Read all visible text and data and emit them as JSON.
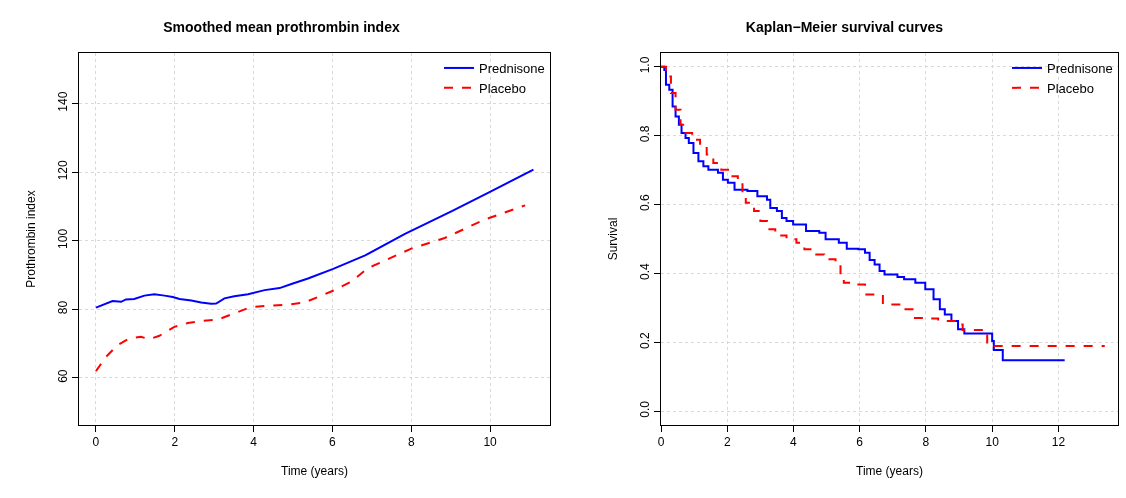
{
  "chart_data": [
    {
      "type": "line",
      "title": "Smoothed mean prothrombin index",
      "xlabel": "Time (years)",
      "ylabel": "Prothrombin index",
      "xlim": [
        -0.43,
        11.52
      ],
      "ylim": [
        46.3,
        154.7
      ],
      "xticks": [
        0,
        2,
        4,
        6,
        8,
        10
      ],
      "yticks": [
        60,
        80,
        100,
        120,
        140
      ],
      "grid": true,
      "legend": "top right",
      "series": [
        {
          "name": "Prednisone",
          "color": "#0000ff",
          "line_style": "solid",
          "x": [
            0,
            0.42,
            0.64,
            0.76,
            0.97,
            1.23,
            1.48,
            1.74,
            1.95,
            2.12,
            2.42,
            2.67,
            2.92,
            3.05,
            3.26,
            3.51,
            3.86,
            4.28,
            4.66,
            4.96,
            5.38,
            6.02,
            6.83,
            7.84,
            9.03,
            9.96,
            11.1
          ],
          "values": [
            80.5,
            82.4,
            82.2,
            82.9,
            83,
            84,
            84.4,
            84,
            83.6,
            83,
            82.6,
            82,
            81.6,
            81.7,
            83.2,
            83.8,
            84.4,
            85.6,
            86.2,
            87.4,
            89,
            91.8,
            95.7,
            102,
            108.6,
            114,
            120.7
          ]
        },
        {
          "name": "Placebo",
          "color": "#ff0000",
          "line_style": "dashed",
          "x": [
            0,
            0.25,
            0.55,
            0.85,
            1.14,
            1.36,
            1.61,
            1.99,
            2.33,
            2.67,
            3.09,
            3.43,
            3.94,
            4.44,
            4.86,
            5.29,
            5.97,
            6.48,
            6.9,
            8.0,
            8.85,
            9.87,
            10.89
          ],
          "values": [
            62,
            66.1,
            69.6,
            71.5,
            72,
            71.3,
            72.3,
            74.9,
            76,
            76.6,
            77,
            78.5,
            80.7,
            81.1,
            81.3,
            82,
            85.2,
            88.1,
            92,
            97.7,
            100.8,
            106.2,
            110.3
          ]
        }
      ]
    },
    {
      "type": "step",
      "title": "Kaplan−Meier survival curves",
      "xlabel": "Time (years)",
      "ylabel": "Survival",
      "xlim": [
        0,
        13.8
      ],
      "ylim": [
        -0.04,
        1.04
      ],
      "xticks": [
        0,
        2,
        4,
        6,
        8,
        10,
        12
      ],
      "yticks": [
        {
          "value": 0,
          "label": "0.0"
        },
        0.2,
        0.4,
        0.6,
        0.8,
        {
          "value": 1,
          "label": "1.0"
        }
      ],
      "grid": true,
      "legend": "top right",
      "series": [
        {
          "name": "Prednisone",
          "color": "#0000ff",
          "line_style": "solid",
          "x": [
            0,
            0.1,
            0.15,
            0.25,
            0.35,
            0.44,
            0.54,
            0.62,
            0.74,
            0.84,
            0.98,
            1.13,
            1.28,
            1.43,
            1.72,
            1.87,
            2.02,
            2.22,
            2.61,
            2.91,
            3.2,
            3.3,
            3.5,
            3.65,
            3.79,
            3.99,
            4.38,
            4.78,
            4.97,
            5.37,
            5.61,
            5.96,
            6.16,
            6.3,
            6.45,
            6.6,
            6.75,
            7.14,
            7.34,
            7.68,
            7.98,
            8.23,
            8.42,
            8.57,
            8.77,
            8.97,
            9.16,
            10.0,
            10.05,
            10.32,
            12.19
          ],
          "values": [
            1.0,
            0.991,
            0.948,
            0.933,
            0.885,
            0.856,
            0.832,
            0.808,
            0.793,
            0.779,
            0.75,
            0.726,
            0.711,
            0.701,
            0.692,
            0.672,
            0.663,
            0.643,
            0.639,
            0.624,
            0.614,
            0.59,
            0.581,
            0.561,
            0.552,
            0.542,
            0.523,
            0.518,
            0.499,
            0.489,
            0.472,
            0.47,
            0.46,
            0.439,
            0.426,
            0.407,
            0.397,
            0.39,
            0.383,
            0.373,
            0.354,
            0.325,
            0.296,
            0.281,
            0.262,
            0.238,
            0.226,
            0.204,
            0.178,
            0.148,
            0.148
          ]
        },
        {
          "name": "Placebo",
          "color": "#ff0000",
          "line_style": "dashed",
          "x": [
            0,
            0.15,
            0.3,
            0.44,
            0.59,
            0.74,
            0.94,
            1.18,
            1.38,
            1.58,
            1.82,
            2.07,
            2.32,
            2.46,
            2.56,
            2.81,
            3.0,
            3.2,
            3.45,
            3.79,
            4.09,
            4.33,
            4.63,
            4.93,
            5.27,
            5.42,
            5.52,
            5.96,
            6.16,
            6.7,
            7.34,
            7.63,
            7.98,
            8.37,
            8.87,
            9.11,
            9.8,
            9.85,
            13.4
          ],
          "values": [
            1.0,
            0.972,
            0.924,
            0.875,
            0.832,
            0.808,
            0.788,
            0.769,
            0.745,
            0.721,
            0.701,
            0.682,
            0.663,
            0.634,
            0.605,
            0.581,
            0.552,
            0.528,
            0.51,
            0.499,
            0.489,
            0.47,
            0.455,
            0.441,
            0.426,
            0.397,
            0.373,
            0.368,
            0.339,
            0.31,
            0.296,
            0.271,
            0.269,
            0.262,
            0.252,
            0.236,
            0.233,
            0.189,
            0.189
          ]
        }
      ]
    }
  ]
}
